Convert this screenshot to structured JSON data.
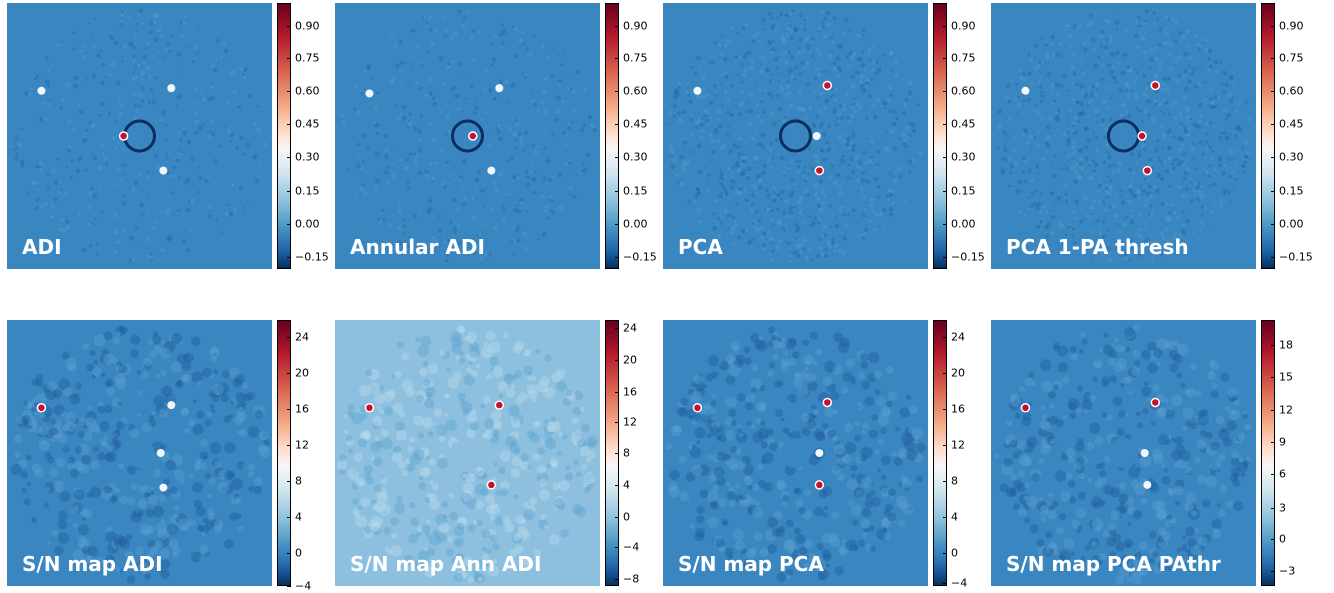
{
  "panels": [
    {
      "label": "ADI",
      "bg": "#3a86c0",
      "ticks": [
        "0.90",
        "0.75",
        "0.60",
        "0.45",
        "0.30",
        "0.15",
        "0.00",
        "−0.15"
      ],
      "sources": [
        [
          "orange",
          "#ec8a63"
        ],
        [
          "white",
          "#e8f1f8"
        ]
      ]
    },
    {
      "label": "Annular ADI",
      "bg": "#3a86c0",
      "ticks": [
        "0.90",
        "0.75",
        "0.60",
        "0.45",
        "0.30",
        "0.15",
        "0.00",
        "−0.15"
      ]
    },
    {
      "label": "PCA",
      "bg": "#3a86c0",
      "ticks": [
        "0.90",
        "0.75",
        "0.60",
        "0.45",
        "0.30",
        "0.15",
        "0.00",
        "−0.15"
      ]
    },
    {
      "label": "PCA 1-PA thresh",
      "bg": "#3a86c0",
      "ticks": [
        "0.90",
        "0.75",
        "0.60",
        "0.45",
        "0.30",
        "0.15",
        "0.00",
        "−0.15"
      ]
    },
    {
      "label": "S/N map ADI",
      "bg": "#3a86c0",
      "ticks": [
        "24",
        "20",
        "16",
        "12",
        "8",
        "4",
        "0",
        "−4"
      ]
    },
    {
      "label": "S/N map Ann ADI",
      "bg": "#8cc0de",
      "ticks": [
        "24",
        "20",
        "16",
        "12",
        "8",
        "4",
        "0",
        "−4",
        "−8"
      ]
    },
    {
      "label": "S/N map PCA",
      "bg": "#3a86c0",
      "ticks": [
        "24",
        "20",
        "16",
        "12",
        "8",
        "4",
        "0",
        "−4"
      ]
    },
    {
      "label": "S/N map PCA PAthr",
      "bg": "#3a86c0",
      "ticks": [
        "18",
        "15",
        "12",
        "9",
        "6",
        "3",
        "0",
        "−3"
      ]
    }
  ]
}
